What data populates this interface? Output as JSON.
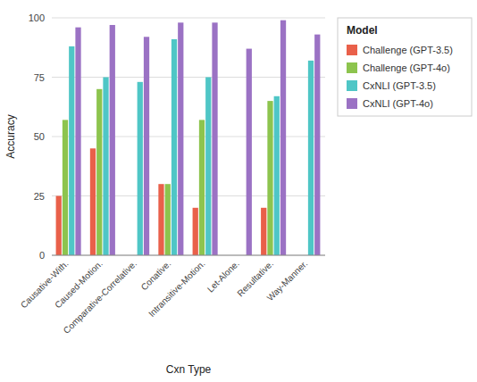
{
  "chart_data": {
    "type": "bar",
    "categories": [
      "Causative-With.",
      "Caused-Motion.",
      "Comparative-Correlative.",
      "Conative.",
      "Intransitive-Motion.",
      "Let-Alone.",
      "Resultative.",
      "Way-Manner."
    ],
    "series": [
      {
        "name": "Challenge (GPT-3.5)",
        "color": "#E9604A",
        "values": [
          25,
          45,
          0,
          30,
          20,
          0,
          20,
          0
        ]
      },
      {
        "name": "Challenge (GPT-4o)",
        "color": "#8DC44E",
        "values": [
          57,
          70,
          0,
          30,
          57,
          0,
          65,
          0
        ]
      },
      {
        "name": "CxNLI (GPT-3.5)",
        "color": "#4FC6C6",
        "values": [
          88,
          75,
          73,
          91,
          75,
          0,
          67,
          82
        ]
      },
      {
        "name": "CxNLI (GPT-4o)",
        "color": "#9B72C4",
        "values": [
          96,
          97,
          92,
          98,
          98,
          87,
          99,
          93
        ]
      }
    ],
    "xlabel": "Cxn Type",
    "ylabel": "Accuracy",
    "legend_title": "Model",
    "legend": "right",
    "ylim": [
      0,
      100
    ],
    "yticks": [
      0,
      25,
      50,
      75,
      100
    ],
    "grid": true
  }
}
